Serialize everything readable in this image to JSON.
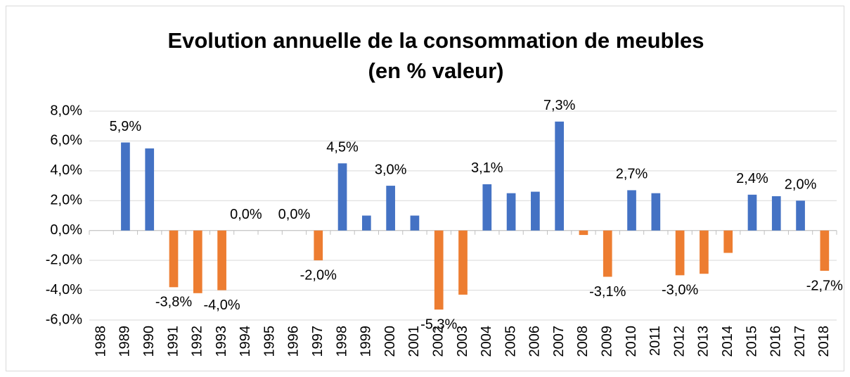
{
  "chart_data": {
    "type": "bar",
    "title": [
      "Evolution annuelle de la consommation de meubles",
      "(en % valeur)"
    ],
    "categories": [
      "1988",
      "1989",
      "1990",
      "1991",
      "1992",
      "1993",
      "1994",
      "1995",
      "1996",
      "1997",
      "1998",
      "1999",
      "2000",
      "2001",
      "2002",
      "2003",
      "2004",
      "2005",
      "2006",
      "2007",
      "2008",
      "2009",
      "2010",
      "2011",
      "2012",
      "2013",
      "2014",
      "2015",
      "2016",
      "2017",
      "2018"
    ],
    "values": [
      null,
      5.9,
      5.5,
      -3.8,
      -4.2,
      -4.0,
      0.0,
      null,
      0.0,
      -2.0,
      4.5,
      1.0,
      3.0,
      1.0,
      -5.3,
      -4.3,
      3.1,
      2.5,
      2.6,
      7.3,
      -0.3,
      -3.1,
      2.7,
      2.5,
      -3.0,
      -2.9,
      -1.5,
      2.4,
      2.3,
      2.0,
      -2.7
    ],
    "value_labels": [
      null,
      "5,9%",
      null,
      "-3,8%",
      null,
      "-4,0%",
      "0,0%",
      null,
      "0,0%",
      "-2,0%",
      "4,5%",
      null,
      "3,0%",
      null,
      "-5,3%",
      null,
      "3,1%",
      null,
      null,
      "7,3%",
      null,
      "-3,1%",
      "2,7%",
      null,
      "-3,0%",
      null,
      null,
      "2,4%",
      null,
      "2,0%",
      "-2,7%"
    ],
    "color_positive": "#4472c4",
    "color_negative": "#ed7d31",
    "ylim": [
      -6,
      8
    ],
    "yticks": [
      {
        "value": -6,
        "label": "-6,0%"
      },
      {
        "value": -4,
        "label": "-4,0%"
      },
      {
        "value": -2,
        "label": "-2,0%"
      },
      {
        "value": 0,
        "label": "0,0%"
      },
      {
        "value": 2,
        "label": "2,0%"
      },
      {
        "value": 4,
        "label": "4,0%"
      },
      {
        "value": 6,
        "label": "6,0%"
      },
      {
        "value": 8,
        "label": "8,0%"
      }
    ],
    "grid": true
  }
}
